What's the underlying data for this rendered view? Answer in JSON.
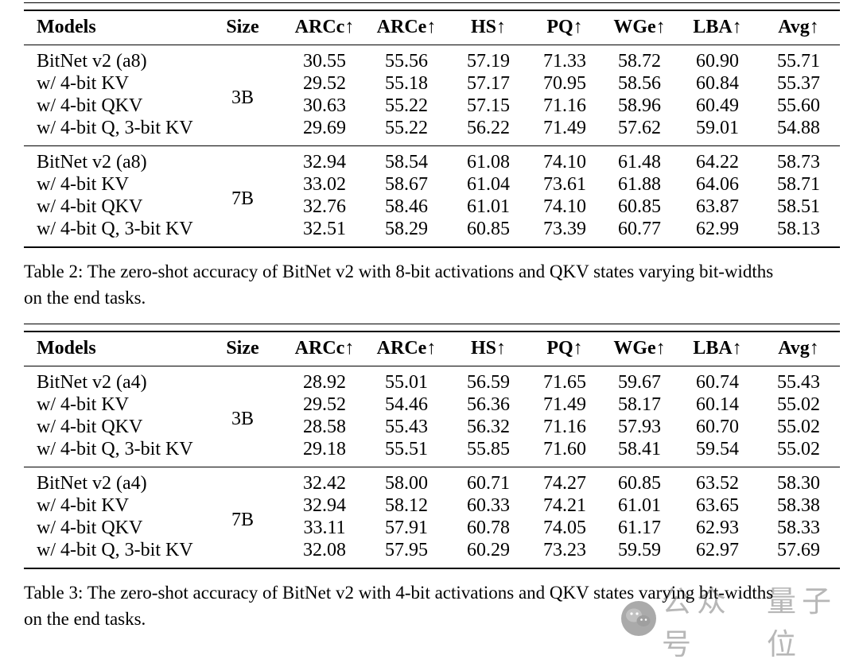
{
  "tables": [
    {
      "name": "table-2",
      "columns": [
        "Models",
        "Size",
        "ARCc↑",
        "ARCe↑",
        "HS↑",
        "PQ↑",
        "WGe↑",
        "LBA↑",
        "Avg↑"
      ],
      "groups": [
        {
          "size": "3B",
          "rows": [
            {
              "model": "BitNet v2 (a8)",
              "values": [
                "30.55",
                "55.56",
                "57.19",
                "71.33",
                "58.72",
                "60.90",
                "55.71"
              ]
            },
            {
              "model": "w/ 4-bit KV",
              "values": [
                "29.52",
                "55.18",
                "57.17",
                "70.95",
                "58.56",
                "60.84",
                "55.37"
              ]
            },
            {
              "model": "w/ 4-bit QKV",
              "values": [
                "30.63",
                "55.22",
                "57.15",
                "71.16",
                "58.96",
                "60.49",
                "55.60"
              ]
            },
            {
              "model": "w/ 4-bit Q, 3-bit KV",
              "values": [
                "29.69",
                "55.22",
                "56.22",
                "71.49",
                "57.62",
                "59.01",
                "54.88"
              ]
            }
          ]
        },
        {
          "size": "7B",
          "rows": [
            {
              "model": "BitNet v2 (a8)",
              "values": [
                "32.94",
                "58.54",
                "61.08",
                "74.10",
                "61.48",
                "64.22",
                "58.73"
              ]
            },
            {
              "model": "w/ 4-bit KV",
              "values": [
                "33.02",
                "58.67",
                "61.04",
                "73.61",
                "61.88",
                "64.06",
                "58.71"
              ]
            },
            {
              "model": "w/ 4-bit QKV",
              "values": [
                "32.76",
                "58.46",
                "61.01",
                "74.10",
                "60.85",
                "63.87",
                "58.51"
              ]
            },
            {
              "model": "w/ 4-bit Q, 3-bit KV",
              "values": [
                "32.51",
                "58.29",
                "60.85",
                "73.39",
                "60.77",
                "62.99",
                "58.13"
              ]
            }
          ]
        }
      ],
      "caption_lines": [
        "Table 2: The zero-shot accuracy of BitNet v2 with 8-bit activations and QKV states varying bit-widths",
        "on the end tasks."
      ]
    },
    {
      "name": "table-3",
      "columns": [
        "Models",
        "Size",
        "ARCc↑",
        "ARCe↑",
        "HS↑",
        "PQ↑",
        "WGe↑",
        "LBA↑",
        "Avg↑"
      ],
      "groups": [
        {
          "size": "3B",
          "rows": [
            {
              "model": "BitNet v2 (a4)",
              "values": [
                "28.92",
                "55.01",
                "56.59",
                "71.65",
                "59.67",
                "60.74",
                "55.43"
              ]
            },
            {
              "model": "w/ 4-bit KV",
              "values": [
                "29.52",
                "54.46",
                "56.36",
                "71.49",
                "58.17",
                "60.14",
                "55.02"
              ]
            },
            {
              "model": "w/ 4-bit QKV",
              "values": [
                "28.58",
                "55.43",
                "56.32",
                "71.16",
                "57.93",
                "60.70",
                "55.02"
              ]
            },
            {
              "model": "w/ 4-bit Q, 3-bit KV",
              "values": [
                "29.18",
                "55.51",
                "55.85",
                "71.60",
                "58.41",
                "59.54",
                "55.02"
              ]
            }
          ]
        },
        {
          "size": "7B",
          "rows": [
            {
              "model": "BitNet v2 (a4)",
              "values": [
                "32.42",
                "58.00",
                "60.71",
                "74.27",
                "60.85",
                "63.52",
                "58.30"
              ]
            },
            {
              "model": "w/ 4-bit KV",
              "values": [
                "32.94",
                "58.12",
                "60.33",
                "74.21",
                "61.01",
                "63.65",
                "58.38"
              ]
            },
            {
              "model": "w/ 4-bit QKV",
              "values": [
                "33.11",
                "57.91",
                "60.78",
                "74.05",
                "61.17",
                "62.93",
                "58.33"
              ]
            },
            {
              "model": "w/ 4-bit Q, 3-bit KV",
              "values": [
                "32.08",
                "57.95",
                "60.29",
                "73.23",
                "59.59",
                "62.97",
                "57.69"
              ]
            }
          ]
        }
      ],
      "caption_lines": [
        "Table 3: The zero-shot accuracy of BitNet v2 with 4-bit activations and QKV states varying bit-widths",
        "on the end tasks."
      ]
    }
  ],
  "watermark": {
    "icon": "wechat-logo",
    "label_account": "公众号",
    "label_name": "量子位",
    "color": "#ababab"
  }
}
